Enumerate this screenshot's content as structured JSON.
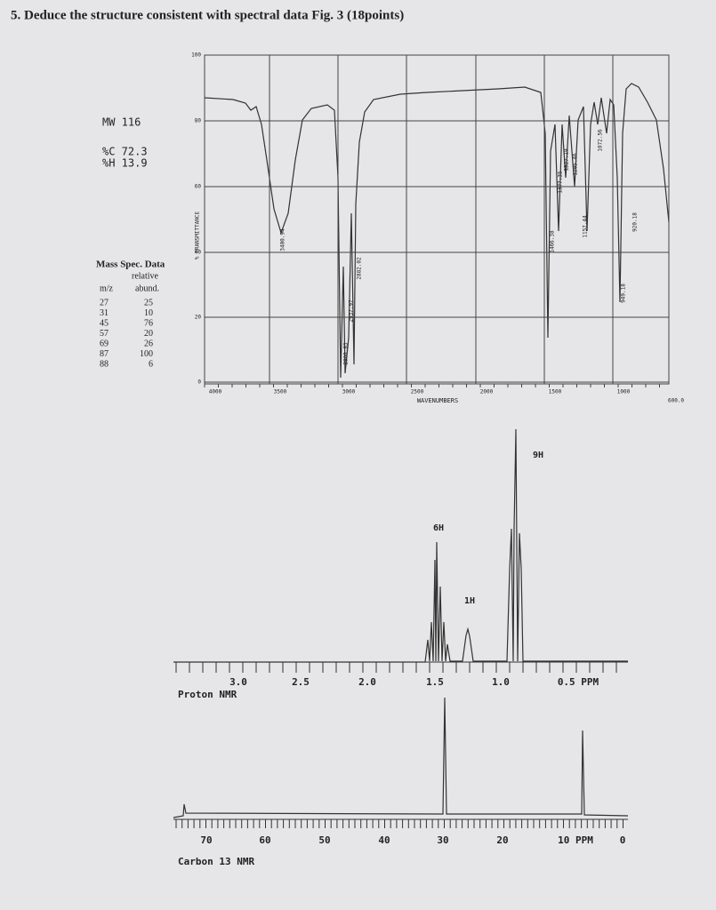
{
  "header": {
    "title": "5. Deduce the structure consistent with spectral data  Fig. 3 (18points)"
  },
  "composition": {
    "mw": "MW 116",
    "carbon": "%C 72.3",
    "hydrogen": "%H 13.9"
  },
  "mass_spec": {
    "title": "Mass Spec. Data",
    "relative": "relative",
    "column_headers": [
      "m/z",
      "abund."
    ],
    "rows": [
      [
        "27",
        "25"
      ],
      [
        "31",
        "10"
      ],
      [
        "45",
        "76"
      ],
      [
        "57",
        "20"
      ],
      [
        "69",
        "26"
      ],
      [
        "87",
        "100"
      ],
      [
        "88",
        "6"
      ]
    ]
  },
  "ir": {
    "y_axis_label": "% TRANSMITTANCE",
    "x_axis_label": "WAVENUMBERS",
    "y_ticks": [
      "100",
      "80",
      "60",
      "40",
      "20",
      "0"
    ],
    "x_ticks": [
      "4000",
      "3500",
      "3000",
      "2500",
      "2000",
      "1500",
      "1000",
      "600.0"
    ],
    "peak_labels": [
      "3400.94",
      "2960.83",
      "2937.97",
      "2882.02",
      "1466.38",
      "1377.35",
      "1327.19",
      "1205.46",
      "1157.44",
      "1072.56",
      "949.18",
      "920.18"
    ]
  },
  "proton_nmr": {
    "label": "Proton NMR",
    "x_ticks": [
      "3.0",
      "2.5",
      "2.0",
      "1.5",
      "1.0",
      "0.5 PPM"
    ],
    "integrals": [
      "6H",
      "1H",
      "9H"
    ]
  },
  "carbon_nmr": {
    "label": "Carbon 13 NMR",
    "x_ticks": [
      "70",
      "60",
      "50",
      "40",
      "30",
      "20",
      "10 PPM",
      "0"
    ]
  }
}
